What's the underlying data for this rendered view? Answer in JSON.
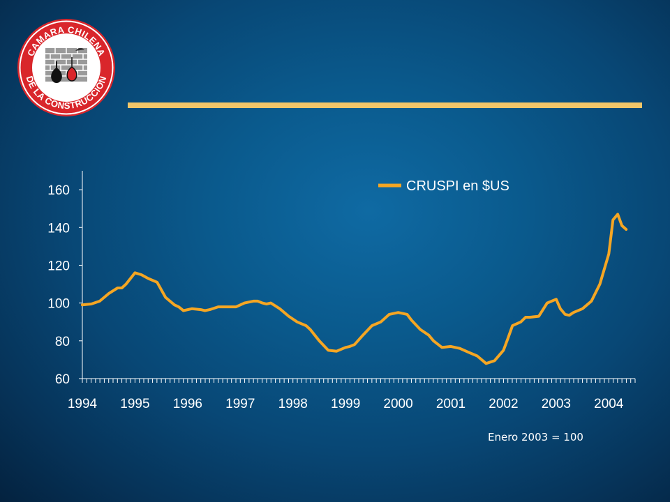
{
  "logo": {
    "top_text": "CAMARA CHILENA",
    "bottom_text": "DE LA CONSTRUCCION",
    "ring_color": "#d9262b"
  },
  "note": "Enero 2003 = 100",
  "colors": {
    "line": "#f5a623",
    "rule": "#f2c669",
    "axis": "#ffffff"
  },
  "chart_data": {
    "type": "line",
    "title": "",
    "xlabel": "",
    "ylabel": "",
    "ylim": [
      60,
      170
    ],
    "xlim": [
      1994.0,
      2004.5
    ],
    "yticks": [
      60,
      80,
      100,
      120,
      140,
      160
    ],
    "xticks": [
      "1994",
      "1995",
      "1996",
      "1997",
      "1998",
      "1999",
      "2000",
      "2001",
      "2002",
      "2003",
      "2004"
    ],
    "grid": false,
    "legend_position": "top-right",
    "series": [
      {
        "name": "CRUSPI en $US",
        "x": [
          1994.0,
          1994.17,
          1994.33,
          1994.5,
          1994.67,
          1994.75,
          1994.83,
          1995.0,
          1995.12,
          1995.25,
          1995.42,
          1995.58,
          1995.75,
          1995.83,
          1995.92,
          1996.08,
          1996.25,
          1996.33,
          1996.42,
          1996.58,
          1996.75,
          1996.92,
          1997.08,
          1997.25,
          1997.33,
          1997.42,
          1997.5,
          1997.58,
          1997.75,
          1997.92,
          1998.08,
          1998.25,
          1998.33,
          1998.5,
          1998.67,
          1998.83,
          1999.0,
          1999.08,
          1999.17,
          1999.33,
          1999.5,
          1999.67,
          1999.83,
          2000.0,
          2000.17,
          2000.25,
          2000.42,
          2000.58,
          2000.67,
          2000.83,
          2001.0,
          2001.17,
          2001.33,
          2001.5,
          2001.67,
          2001.83,
          2002.0,
          2002.08,
          2002.17,
          2002.33,
          2002.42,
          2002.5,
          2002.67,
          2002.83,
          2003.0,
          2003.08,
          2003.17,
          2003.25,
          2003.33,
          2003.5,
          2003.67,
          2003.83,
          2004.0,
          2004.08,
          2004.17,
          2004.25,
          2004.33,
          2004.42,
          2004.5
        ],
        "values": [
          99,
          99.5,
          101,
          105,
          108,
          108,
          110,
          116,
          115,
          113,
          111,
          103,
          99,
          98,
          96,
          97,
          96.5,
          96,
          96.5,
          98,
          98,
          98,
          100,
          101,
          101,
          100,
          99.5,
          100,
          97,
          93,
          90,
          88,
          86,
          80,
          75,
          74.5,
          76.5,
          77,
          78,
          83,
          88,
          90,
          94,
          95,
          94,
          91,
          86,
          83,
          80,
          76.5,
          77,
          76,
          74,
          72,
          68,
          69.5,
          75,
          81,
          88,
          90,
          92.5,
          92.5,
          93,
          100,
          102,
          97,
          94,
          93.5,
          95,
          97,
          101,
          110,
          126,
          144,
          147,
          141,
          139,
          null,
          null
        ]
      }
    ]
  }
}
